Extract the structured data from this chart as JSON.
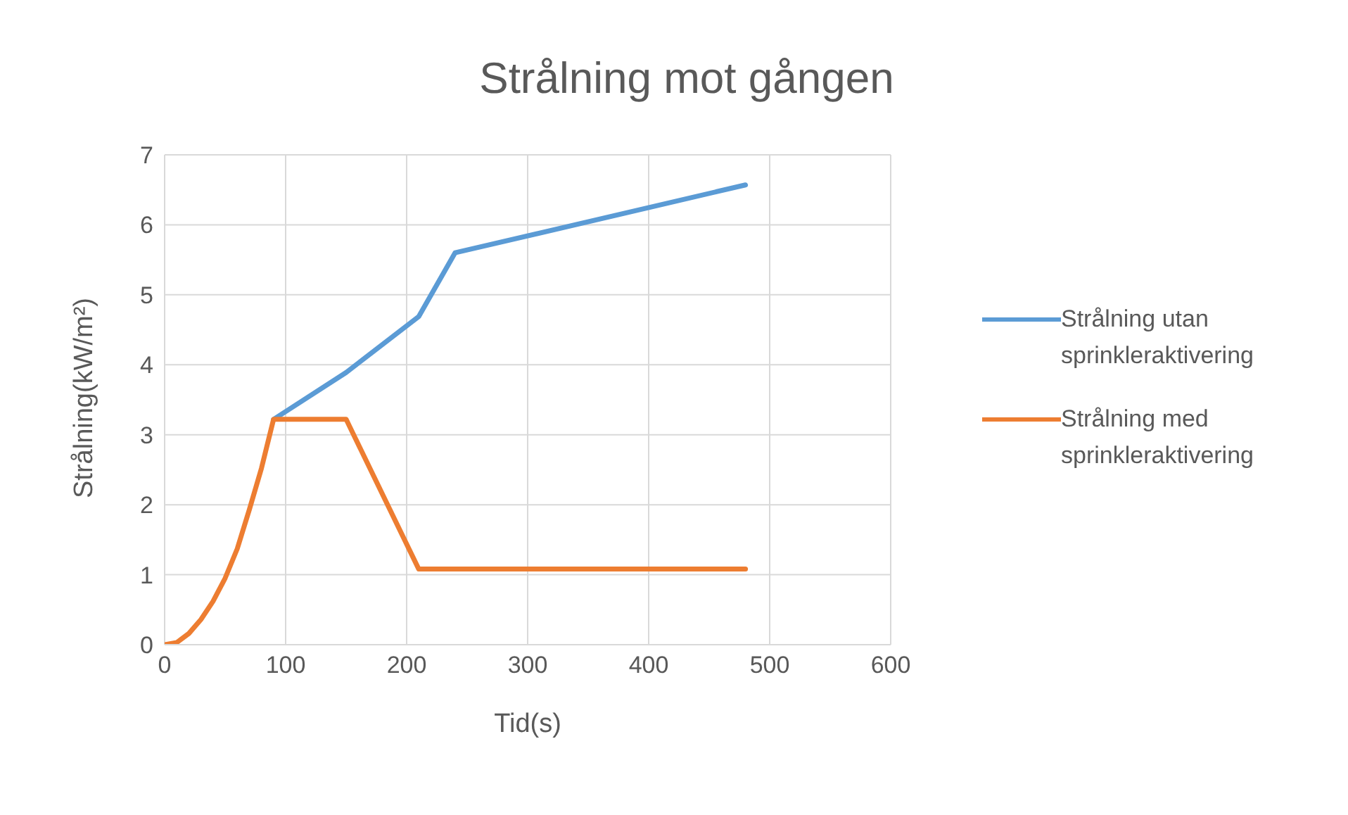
{
  "chart_data": {
    "type": "line",
    "title": "Strålning mot gången",
    "xlabel": "Tid(s)",
    "ylabel": "Strålning(kW/m²)",
    "xlim": [
      0,
      600
    ],
    "xticks": [
      0,
      100,
      200,
      300,
      400,
      500,
      600
    ],
    "ylim": [
      0,
      7
    ],
    "yticks": [
      0,
      1,
      2,
      3,
      4,
      5,
      6,
      7
    ],
    "grid": true,
    "legend": "right",
    "series": [
      {
        "name": "Strålning utan sprinkleraktivering",
        "color": "#5b9bd5",
        "x": [
          90,
          150,
          210,
          240,
          480
        ],
        "values": [
          3.22,
          3.89,
          4.69,
          5.6,
          6.57
        ]
      },
      {
        "name": "Strålning med sprinkleraktivering",
        "color": "#ed7d31",
        "x": [
          0,
          10,
          20,
          30,
          40,
          50,
          60,
          70,
          80,
          90,
          150,
          210,
          480
        ],
        "values": [
          0,
          0.03,
          0.16,
          0.36,
          0.62,
          0.95,
          1.37,
          1.93,
          2.52,
          3.22,
          3.22,
          1.08,
          1.08
        ]
      }
    ]
  }
}
